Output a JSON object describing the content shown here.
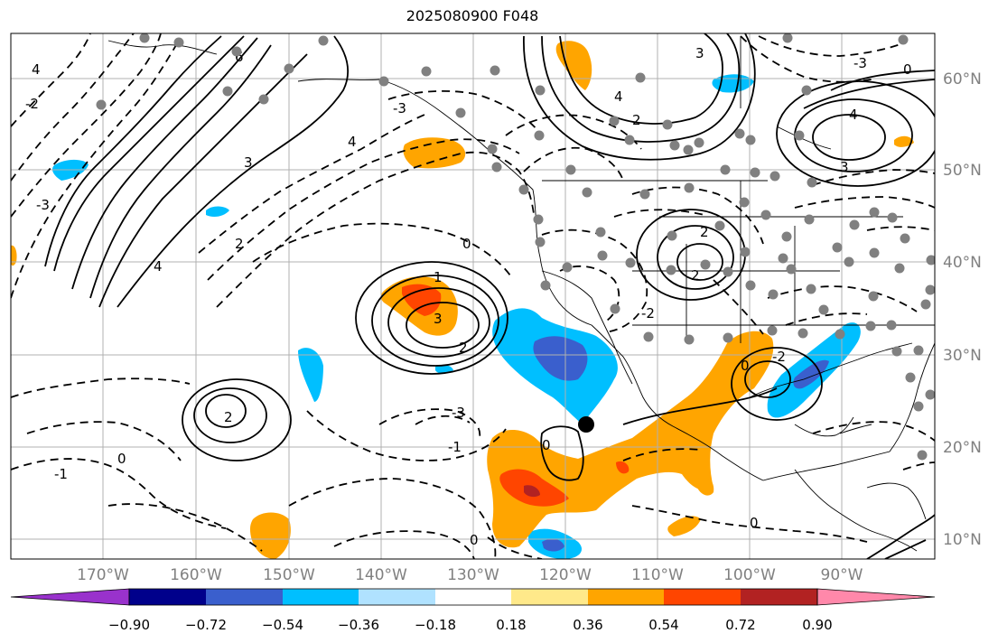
{
  "title": "2025080900 F048",
  "longitude_ticks": [
    "170°W",
    "160°W",
    "150°W",
    "140°W",
    "130°W",
    "120°W",
    "110°W",
    "100°W",
    "90°W"
  ],
  "latitude_ticks": [
    "60°N",
    "50°N",
    "40°N",
    "30°N",
    "20°N",
    "10°N"
  ],
  "colorbar": {
    "labels": [
      "−0.90",
      "−0.72",
      "−0.54",
      "−0.36",
      "−0.18",
      "0.18",
      "0.36",
      "0.54",
      "0.72",
      "0.90"
    ],
    "colors": [
      "#9932cc",
      "#00008b",
      "#3a5fcd",
      "#00bfff",
      "#b0e2ff",
      "#ffffff",
      "#ffe98a",
      "#ffa500",
      "#ff4500",
      "#b22222",
      "#ff88aa"
    ]
  },
  "colors": {
    "tick_label": "#808080",
    "station_dot": "#808080",
    "positive_contour": "#000000",
    "negative_contour": "#000000"
  },
  "contour_labels": [
    "3",
    "4",
    "2",
    "0",
    "1",
    "-1",
    "-2",
    "-3",
    "6"
  ],
  "marker": "black-dot"
}
